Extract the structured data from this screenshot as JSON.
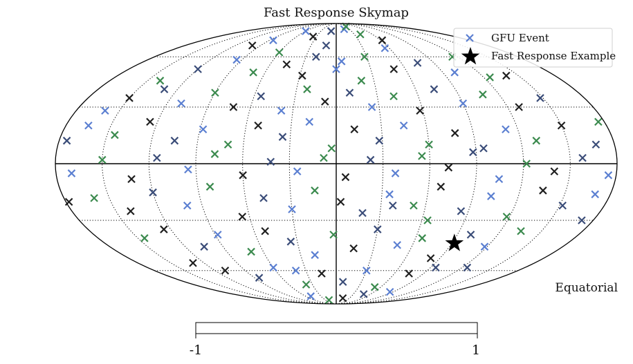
{
  "chart_data": {
    "type": "scatter",
    "projection": "mollweide",
    "title": "Fast Response Skymap",
    "coordinate_label": "Equatorial",
    "xlim": [
      -180,
      180
    ],
    "ylim": [
      -90,
      90
    ],
    "grid": true,
    "legend_placement": "top-right",
    "legend": [
      {
        "name": "GFU Event",
        "marker": "x",
        "color": "#5b7fd1"
      },
      {
        "name": "Fast Response Example",
        "marker": "star",
        "color": "#000000"
      }
    ],
    "series": [
      {
        "name": "GFU Event",
        "marker_colors": [
          "#5b7fd1",
          "#3b8a4e",
          "#1f1f1f",
          "#3a4c78"
        ],
        "points": [
          [
            -85,
            72
          ],
          [
            -60,
            63
          ],
          [
            -35,
            75
          ],
          [
            -10,
            80
          ],
          [
            18,
            82
          ],
          [
            40,
            77
          ],
          [
            62,
            72
          ],
          [
            -120,
            52
          ],
          [
            -95,
            58
          ],
          [
            -70,
            50
          ],
          [
            -45,
            55
          ],
          [
            -20,
            60
          ],
          [
            5,
            57
          ],
          [
            28,
            60
          ],
          [
            50,
            52
          ],
          [
            75,
            56
          ],
          [
            100,
            50
          ],
          [
            125,
            47
          ],
          [
            -150,
            35
          ],
          [
            -130,
            40
          ],
          [
            -110,
            32
          ],
          [
            -90,
            38
          ],
          [
            -72,
            30
          ],
          [
            -55,
            36
          ],
          [
            -38,
            28
          ],
          [
            -22,
            40
          ],
          [
            -8,
            33
          ],
          [
            10,
            38
          ],
          [
            25,
            30
          ],
          [
            42,
            36
          ],
          [
            58,
            28
          ],
          [
            74,
            40
          ],
          [
            90,
            32
          ],
          [
            108,
            37
          ],
          [
            128,
            30
          ],
          [
            148,
            35
          ],
          [
            -165,
            20
          ],
          [
            -145,
            15
          ],
          [
            -125,
            22
          ],
          [
            -105,
            12
          ],
          [
            -88,
            18
          ],
          [
            -70,
            10
          ],
          [
            -52,
            20
          ],
          [
            -35,
            14
          ],
          [
            -18,
            22
          ],
          [
            -3,
            8
          ],
          [
            12,
            18
          ],
          [
            28,
            12
          ],
          [
            45,
            20
          ],
          [
            60,
            10
          ],
          [
            78,
            16
          ],
          [
            95,
            8
          ],
          [
            112,
            18
          ],
          [
            130,
            12
          ],
          [
            150,
            20
          ],
          [
            168,
            10
          ],
          [
            -170,
            -5
          ],
          [
            -150,
            2
          ],
          [
            -132,
            -8
          ],
          [
            -115,
            3
          ],
          [
            -95,
            -3
          ],
          [
            -78,
            5
          ],
          [
            -60,
            -6
          ],
          [
            -42,
            1
          ],
          [
            -25,
            -4
          ],
          [
            -8,
            3
          ],
          [
            6,
            -7
          ],
          [
            22,
            2
          ],
          [
            38,
            -5
          ],
          [
            55,
            4
          ],
          [
            72,
            -2
          ],
          [
            88,
            6
          ],
          [
            105,
            -8
          ],
          [
            122,
            0
          ],
          [
            140,
            -4
          ],
          [
            158,
            3
          ],
          [
            175,
            -6
          ],
          [
            -160,
            -18
          ],
          [
            -140,
            -25
          ],
          [
            -120,
            -15
          ],
          [
            -100,
            -22
          ],
          [
            -82,
            -12
          ],
          [
            -65,
            -28
          ],
          [
            -48,
            -18
          ],
          [
            -30,
            -24
          ],
          [
            -14,
            -14
          ],
          [
            3,
            -20
          ],
          [
            18,
            -26
          ],
          [
            35,
            -16
          ],
          [
            52,
            -22
          ],
          [
            68,
            -12
          ],
          [
            85,
            -25
          ],
          [
            102,
            -17
          ],
          [
            118,
            -28
          ],
          [
            135,
            -14
          ],
          [
            152,
            -22
          ],
          [
            170,
            -16
          ],
          [
            -145,
            -40
          ],
          [
            -125,
            -35
          ],
          [
            -105,
            -45
          ],
          [
            -88,
            -38
          ],
          [
            -70,
            -48
          ],
          [
            -52,
            -36
          ],
          [
            -35,
            -42
          ],
          [
            -18,
            -50
          ],
          [
            -2,
            -38
          ],
          [
            14,
            -46
          ],
          [
            30,
            -35
          ],
          [
            48,
            -44
          ],
          [
            65,
            -40
          ],
          [
            82,
            -52
          ],
          [
            100,
            -38
          ],
          [
            118,
            -45
          ],
          [
            135,
            -36
          ],
          [
            -110,
            -60
          ],
          [
            -85,
            -65
          ],
          [
            -60,
            -58
          ],
          [
            -38,
            -70
          ],
          [
            -15,
            -62
          ],
          [
            8,
            -68
          ],
          [
            30,
            -60
          ],
          [
            52,
            -72
          ],
          [
            75,
            -62
          ],
          [
            95,
            -58
          ],
          [
            -50,
            -80
          ],
          [
            -20,
            -84
          ],
          [
            15,
            -82
          ],
          [
            48,
            -78
          ],
          [
            85,
            -76
          ],
          [
            -140,
            45
          ],
          [
            -100,
            68
          ],
          [
            -12,
            68
          ],
          [
            55,
            66
          ],
          [
            115,
            60
          ],
          [
            140,
            48
          ],
          [
            -175,
            12
          ],
          [
            -160,
            28
          ],
          [
            176,
            22
          ],
          [
            -178,
            -20
          ],
          [
            172,
            -30
          ],
          [
            -60,
            80
          ],
          [
            30,
            85
          ],
          [
            -130,
            -55
          ],
          [
            125,
            -58
          ],
          [
            0,
            52
          ],
          [
            20,
            45
          ],
          [
            -28,
            48
          ],
          [
            38,
            -22
          ],
          [
            -40,
            -60
          ],
          [
            64,
            -30
          ]
        ]
      },
      {
        "name": "Fast Response Example",
        "marker": "star",
        "points": [
          [
            92,
            -43
          ]
        ]
      }
    ]
  },
  "colorbar": {
    "tick_min": "-1",
    "tick_max": "1"
  }
}
